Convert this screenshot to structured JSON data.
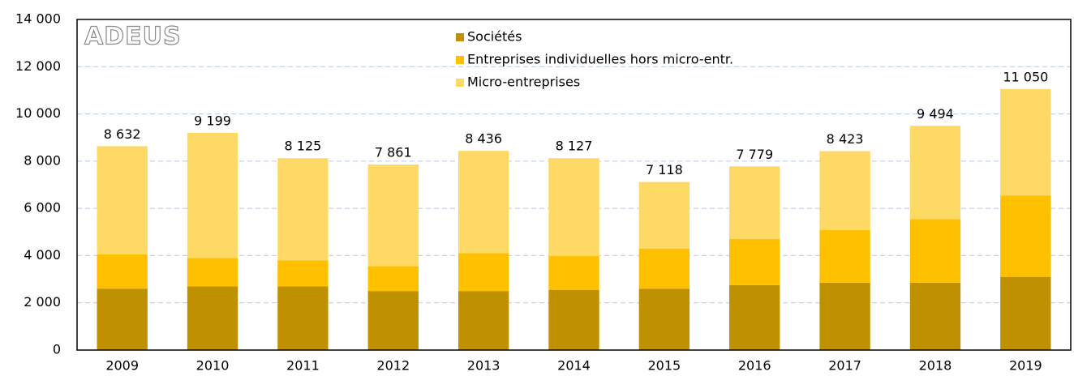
{
  "chart_data": {
    "type": "stacked_bar",
    "logo": "ADEUS",
    "categories": [
      "2009",
      "2010",
      "2011",
      "2012",
      "2013",
      "2014",
      "2015",
      "2016",
      "2017",
      "2018",
      "2019"
    ],
    "series": [
      {
        "name": "Sociétés",
        "color": "#bf9000",
        "values": [
          2600,
          2700,
          2700,
          2500,
          2500,
          2550,
          2600,
          2750,
          2850,
          2850,
          3100
        ]
      },
      {
        "name": "Entreprises individuelles hors micro-entr.",
        "color": "#ffc000",
        "values": [
          1450,
          1200,
          1100,
          1050,
          1600,
          1430,
          1700,
          1950,
          2230,
          2700,
          3450
        ]
      },
      {
        "name": "Micro-entreprises",
        "color": "#ffd966",
        "values": [
          4582,
          5299,
          4325,
          4311,
          4336,
          4147,
          2818,
          3079,
          3343,
          3944,
          4500
        ]
      }
    ],
    "totals": [
      8632,
      9199,
      8125,
      7861,
      8436,
      8127,
      7118,
      7779,
      8423,
      9494,
      11050
    ],
    "total_labels": [
      "8 632",
      "9 199",
      "8 125",
      "7 861",
      "8 436",
      "8 127",
      "7 118",
      "7 779",
      "8 423",
      "9 494",
      "11 050"
    ],
    "ylim": [
      0,
      14000
    ],
    "yticks": [
      0,
      {
        "value": 2000,
        "label": "2 000"
      },
      {
        "value": 4000,
        "label": "4 000"
      },
      {
        "value": 6000,
        "label": "6 000"
      },
      {
        "value": 8000,
        "label": "8 000"
      },
      {
        "value": 10000,
        "label": "10 000"
      },
      {
        "value": 12000,
        "label": "12 000"
      },
      {
        "value": 14000,
        "label": "14 000"
      }
    ],
    "grid": true
  }
}
